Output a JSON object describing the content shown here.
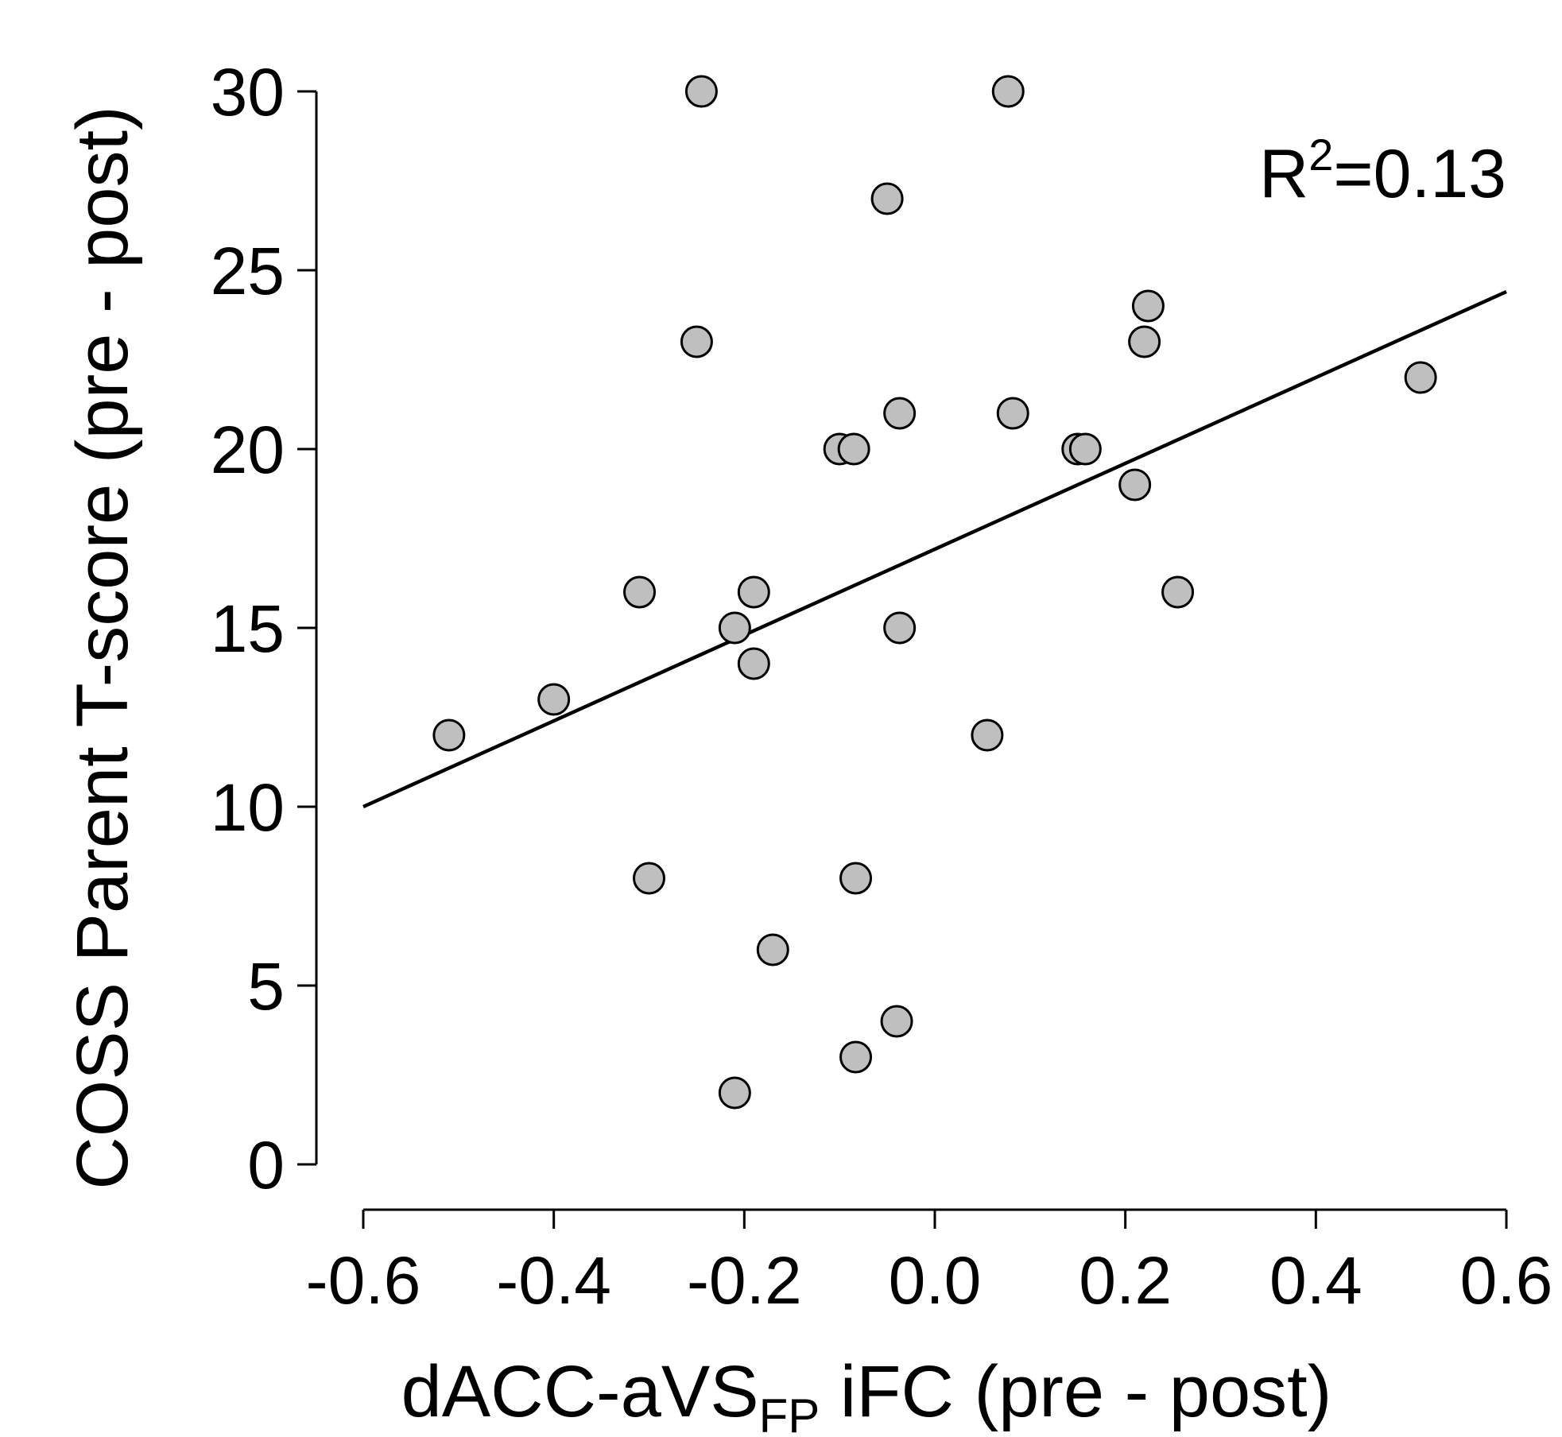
{
  "chart_data": {
    "type": "scatter",
    "xlabel": {
      "main": "dACC-aVS",
      "subscript": "FP",
      "rest": " iFC (pre - post)"
    },
    "ylabel": "COSS Parent T-score (pre - post)",
    "xlim": [
      -0.6,
      0.6
    ],
    "ylim": [
      0,
      30
    ],
    "xticks": [
      "-0.6",
      "-0.4",
      "-0.2",
      "0.0",
      "0.2",
      "0.4",
      "0.6"
    ],
    "yticks": [
      "0",
      "5",
      "10",
      "15",
      "20",
      "25",
      "30"
    ],
    "grid": false,
    "annotation": {
      "base": "R",
      "superscript": "2",
      "rest": "=0.13"
    },
    "fit_line": {
      "x": [
        -0.6,
        0.6
      ],
      "y": [
        10.0,
        24.4
      ]
    },
    "points": [
      {
        "x": -0.51,
        "y": 12
      },
      {
        "x": -0.4,
        "y": 13
      },
      {
        "x": -0.31,
        "y": 16
      },
      {
        "x": -0.3,
        "y": 8
      },
      {
        "x": -0.25,
        "y": 23
      },
      {
        "x": -0.245,
        "y": 30
      },
      {
        "x": -0.21,
        "y": 15
      },
      {
        "x": -0.21,
        "y": 2
      },
      {
        "x": -0.19,
        "y": 16
      },
      {
        "x": -0.19,
        "y": 14
      },
      {
        "x": -0.17,
        "y": 6
      },
      {
        "x": -0.1,
        "y": 20
      },
      {
        "x": -0.085,
        "y": 20
      },
      {
        "x": -0.083,
        "y": 8
      },
      {
        "x": -0.083,
        "y": 3
      },
      {
        "x": -0.05,
        "y": 27
      },
      {
        "x": -0.04,
        "y": 4
      },
      {
        "x": -0.037,
        "y": 21
      },
      {
        "x": -0.037,
        "y": 15
      },
      {
        "x": 0.055,
        "y": 12
      },
      {
        "x": 0.077,
        "y": 30
      },
      {
        "x": 0.082,
        "y": 21
      },
      {
        "x": 0.15,
        "y": 20
      },
      {
        "x": 0.158,
        "y": 20
      },
      {
        "x": 0.21,
        "y": 19
      },
      {
        "x": 0.22,
        "y": 23
      },
      {
        "x": 0.224,
        "y": 24
      },
      {
        "x": 0.255,
        "y": 16
      },
      {
        "x": 0.51,
        "y": 22
      }
    ]
  }
}
